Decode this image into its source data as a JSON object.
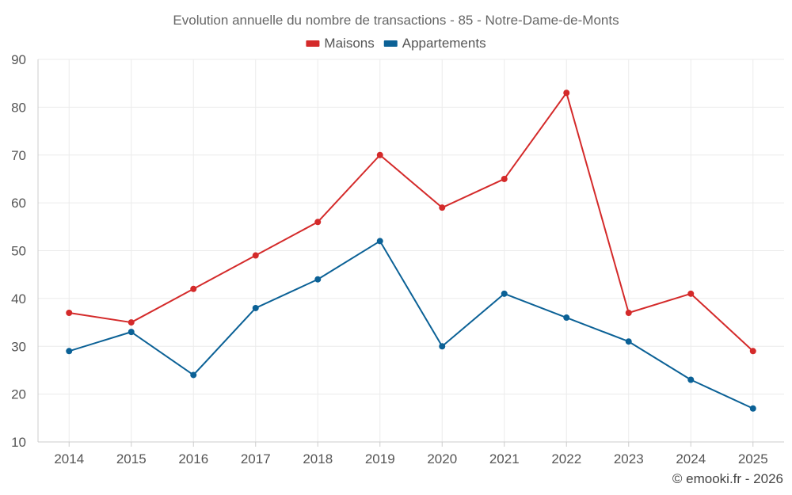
{
  "chart_data": {
    "type": "line",
    "title": "Evolution annuelle du nombre de transactions - 85 - Notre-Dame-de-Monts",
    "categories": [
      "2014",
      "2015",
      "2016",
      "2017",
      "2018",
      "2019",
      "2020",
      "2021",
      "2022",
      "2023",
      "2024",
      "2025"
    ],
    "series": [
      {
        "name": "Maisons",
        "color": "#d42a2a",
        "values": [
          37,
          35,
          42,
          49,
          56,
          70,
          59,
          65,
          83,
          37,
          41,
          29
        ]
      },
      {
        "name": "Appartements",
        "color": "#0b6196",
        "values": [
          29,
          33,
          24,
          38,
          44,
          52,
          30,
          41,
          36,
          31,
          23,
          17
        ]
      }
    ],
    "ylim": [
      10,
      90
    ],
    "yticks": [
      10,
      20,
      30,
      40,
      50,
      60,
      70,
      80,
      90
    ],
    "xlabel": "",
    "ylabel": "",
    "grid": true,
    "legend": "top-center"
  },
  "credit": "© emooki.fr - 2026"
}
